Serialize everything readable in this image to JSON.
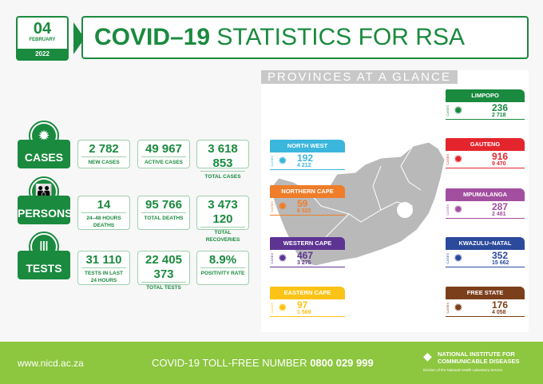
{
  "header": {
    "day": "04",
    "month": "FEBRUARY",
    "year": "2022",
    "title_bold": "COVID–19",
    "title_rest": " STATISTICS FOR RSA"
  },
  "stats": [
    {
      "category": "CASES",
      "icon": "virus-icon",
      "items": [
        {
          "value": "2 782",
          "label": "NEW CASES"
        },
        {
          "value": "49 967",
          "label": "ACTIVE CASES"
        },
        {
          "value": "3 618 853",
          "label": "TOTAL CASES"
        }
      ]
    },
    {
      "category": "PERSONS",
      "icon": "people-icon",
      "items": [
        {
          "value": "14",
          "label": "24–48 HOURS DEATHS"
        },
        {
          "value": "95 766",
          "label": "TOTAL DEATHS"
        },
        {
          "value": "3 473 120",
          "label": "TOTAL RECOVERIES"
        }
      ]
    },
    {
      "category": "TESTS",
      "icon": "test-tubes-icon",
      "items": [
        {
          "value": "31 110",
          "label": "TESTS IN LAST 24 HOURS"
        },
        {
          "value": "22 405 373",
          "label": "TOTAL TESTS"
        },
        {
          "value": "8.9%",
          "label": "POSITIVITY RATE"
        }
      ]
    }
  ],
  "provinces": {
    "title": "PROVINCES AT A GLANCE",
    "cases_label": "CASES",
    "list": [
      {
        "name": "LIMPOPO",
        "new": "236",
        "total": "2 718",
        "color": "#1a8a3e"
      },
      {
        "name": "NORTH WEST",
        "new": "192",
        "total": "4 212",
        "color": "#3bb6dc"
      },
      {
        "name": "GAUTENG",
        "new": "916",
        "total": "9 470",
        "color": "#e4252d"
      },
      {
        "name": "NORTHERN CAPE",
        "new": "59",
        "total": "6 522",
        "color": "#ef7d29"
      },
      {
        "name": "MPUMALANGA",
        "new": "287",
        "total": "2 481",
        "color": "#a24f9f"
      },
      {
        "name": "WESTERN CAPE",
        "new": "467",
        "total": "3 275",
        "color": "#5e3493"
      },
      {
        "name": "KWAZULU–NATAL",
        "new": "352",
        "total": "15 662",
        "color": "#2c4a9c"
      },
      {
        "name": "EASTERN CAPE",
        "new": "97",
        "total": "1 569",
        "color": "#fbc316"
      },
      {
        "name": "FREE STATE",
        "new": "176",
        "total": "4 058",
        "color": "#7b3f1b"
      }
    ]
  },
  "footer": {
    "website": "www.nicd.ac.za",
    "tollfree_label": "COVID-19 TOLL-FREE NUMBER",
    "tollfree_number": "0800 029 999",
    "org_line1": "NATIONAL INSTITUTE FOR",
    "org_line2": "COMMUNICABLE DISEASES",
    "org_sub": "Division of the National Health Laboratory Service"
  },
  "colors": {
    "primary": "#1a8a3e",
    "footer": "#8dc63f"
  }
}
